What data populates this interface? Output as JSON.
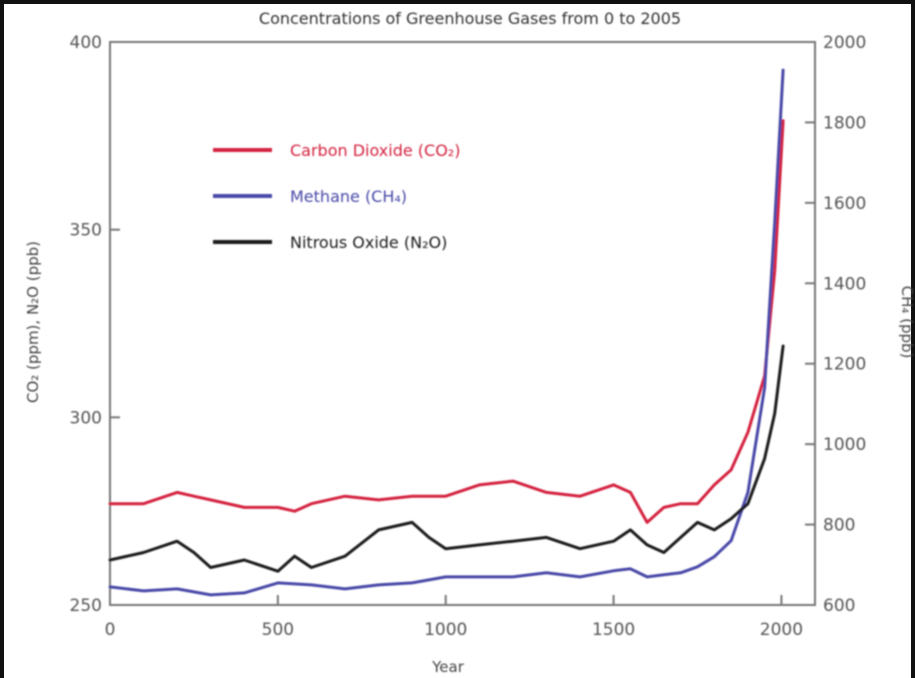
{
  "chart_data": {
    "type": "line",
    "title": "Concentrations of Greenhouse Gases from 0 to 2005",
    "xlabel": "Year",
    "ylabel_left": "CO₂ (ppm), N₂O (ppb)",
    "ylabel_right": "CH₄ (ppb)",
    "xlim": [
      0,
      2100
    ],
    "ylim_left": [
      250,
      400
    ],
    "ylim_right": [
      600,
      2000
    ],
    "x_ticks": [
      0,
      500,
      1000,
      1500,
      2000
    ],
    "y_ticks_left": [
      250,
      300,
      350,
      400
    ],
    "y_ticks_right": [
      600,
      800,
      1000,
      1200,
      1400,
      1600,
      1800,
      2000
    ],
    "grid": false,
    "legend_position": "top-left",
    "series": [
      {
        "name": "Carbon Dioxide (CO₂)",
        "axis": "left",
        "color": "#d4233f",
        "points": [
          [
            0,
            277
          ],
          [
            100,
            277
          ],
          [
            200,
            280
          ],
          [
            250,
            279
          ],
          [
            300,
            278
          ],
          [
            400,
            276
          ],
          [
            500,
            276
          ],
          [
            550,
            275
          ],
          [
            600,
            277
          ],
          [
            700,
            279
          ],
          [
            800,
            278
          ],
          [
            900,
            279
          ],
          [
            1000,
            279
          ],
          [
            1100,
            282
          ],
          [
            1200,
            283
          ],
          [
            1300,
            280
          ],
          [
            1400,
            279
          ],
          [
            1500,
            282
          ],
          [
            1550,
            280
          ],
          [
            1600,
            272
          ],
          [
            1650,
            276
          ],
          [
            1700,
            277
          ],
          [
            1750,
            277
          ],
          [
            1800,
            282
          ],
          [
            1850,
            286
          ],
          [
            1900,
            296
          ],
          [
            1950,
            311
          ],
          [
            1980,
            339
          ],
          [
            2005,
            379
          ]
        ]
      },
      {
        "name": "Methane (CH₄)",
        "axis": "right",
        "color": "#4848a8",
        "points": [
          [
            0,
            645
          ],
          [
            100,
            635
          ],
          [
            200,
            640
          ],
          [
            300,
            625
          ],
          [
            400,
            630
          ],
          [
            500,
            655
          ],
          [
            600,
            650
          ],
          [
            700,
            640
          ],
          [
            800,
            650
          ],
          [
            900,
            655
          ],
          [
            1000,
            670
          ],
          [
            1100,
            670
          ],
          [
            1200,
            670
          ],
          [
            1300,
            680
          ],
          [
            1400,
            670
          ],
          [
            1500,
            685
          ],
          [
            1550,
            690
          ],
          [
            1600,
            670
          ],
          [
            1650,
            675
          ],
          [
            1700,
            680
          ],
          [
            1750,
            695
          ],
          [
            1800,
            720
          ],
          [
            1850,
            760
          ],
          [
            1900,
            880
          ],
          [
            1950,
            1140
          ],
          [
            1980,
            1550
          ],
          [
            2005,
            1930
          ]
        ]
      },
      {
        "name": "Nitrous Oxide (N₂O)",
        "axis": "left",
        "color": "#1a1a1a",
        "points": [
          [
            0,
            262
          ],
          [
            100,
            264
          ],
          [
            200,
            267
          ],
          [
            250,
            264
          ],
          [
            300,
            260
          ],
          [
            400,
            262
          ],
          [
            500,
            259
          ],
          [
            550,
            263
          ],
          [
            600,
            260
          ],
          [
            700,
            263
          ],
          [
            800,
            270
          ],
          [
            900,
            272
          ],
          [
            950,
            268
          ],
          [
            1000,
            265
          ],
          [
            1100,
            266
          ],
          [
            1200,
            267
          ],
          [
            1300,
            268
          ],
          [
            1400,
            265
          ],
          [
            1500,
            267
          ],
          [
            1550,
            270
          ],
          [
            1600,
            266
          ],
          [
            1650,
            264
          ],
          [
            1700,
            268
          ],
          [
            1750,
            272
          ],
          [
            1800,
            270
          ],
          [
            1850,
            273
          ],
          [
            1900,
            277
          ],
          [
            1950,
            289
          ],
          [
            1980,
            301
          ],
          [
            2005,
            319
          ]
        ]
      }
    ]
  }
}
